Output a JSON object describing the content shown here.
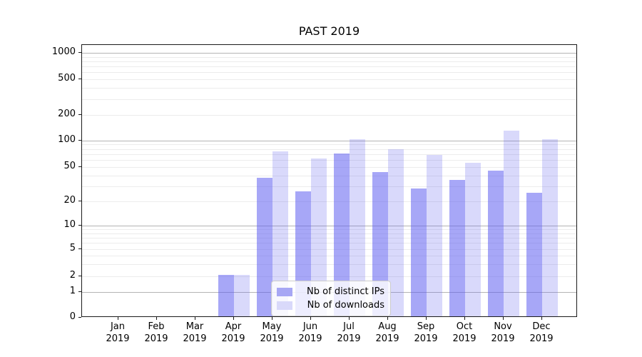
{
  "title": "PAST 2019",
  "legend": {
    "items": [
      {
        "label": "Nb of distinct IPs",
        "color": "#a7a7f4"
      },
      {
        "label": "Nb of downloads",
        "color": "#d9d9fa"
      }
    ]
  },
  "chart_data": {
    "type": "bar",
    "title": "PAST 2019",
    "categories": [
      "Jan 2019",
      "Feb 2019",
      "Mar 2019",
      "Apr 2019",
      "May 2019",
      "Jun 2019",
      "Jul 2019",
      "Aug 2019",
      "Sep 2019",
      "Oct 2019",
      "Nov 2019",
      "Dec 2019"
    ],
    "series": [
      {
        "name": "Nb of distinct IPs",
        "color": "rgba(95,95,240,0.55)",
        "values": [
          0,
          0,
          0,
          2,
          36,
          25,
          69,
          42,
          27,
          34,
          44,
          24
        ]
      },
      {
        "name": "Nb of downloads",
        "color": "rgba(95,95,240,0.24)",
        "values": [
          0,
          0,
          0,
          2,
          73,
          60,
          100,
          77,
          66,
          54,
          126,
          100
        ]
      }
    ],
    "xlabel": "",
    "ylabel": "",
    "yscale": "symlog-like",
    "yticks": [
      0,
      1,
      2,
      5,
      10,
      20,
      50,
      100,
      200,
      500,
      1000
    ],
    "ylim": [
      0,
      1300
    ],
    "grid": "horizontal major+minor",
    "legend_position": "lower center inside plot"
  }
}
